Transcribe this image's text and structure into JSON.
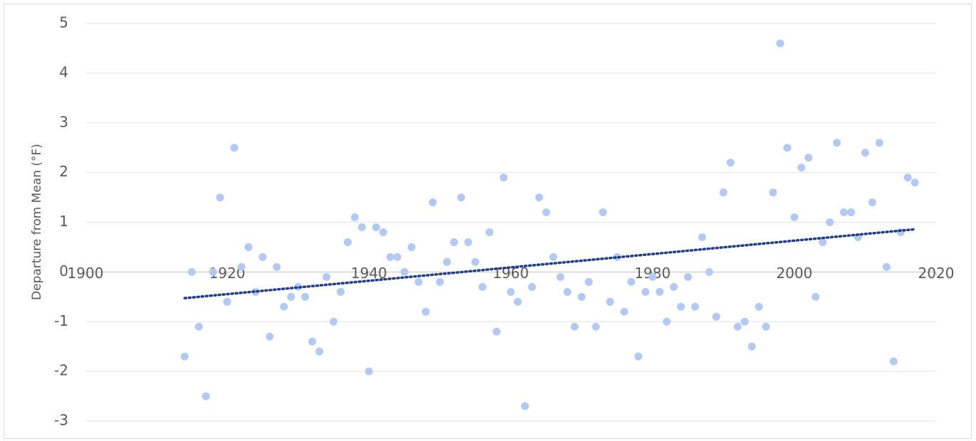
{
  "chart_data": {
    "type": "scatter",
    "y_label": "Departure from Mean (°F)",
    "x": [
      1914,
      1915,
      1916,
      1917,
      1918,
      1919,
      1920,
      1921,
      1922,
      1923,
      1924,
      1925,
      1926,
      1927,
      1928,
      1929,
      1930,
      1931,
      1932,
      1933,
      1934,
      1935,
      1936,
      1937,
      1938,
      1939,
      1940,
      1941,
      1942,
      1943,
      1944,
      1945,
      1946,
      1947,
      1948,
      1949,
      1950,
      1951,
      1952,
      1953,
      1954,
      1955,
      1956,
      1957,
      1958,
      1959,
      1960,
      1961,
      1962,
      1963,
      1964,
      1965,
      1966,
      1967,
      1968,
      1969,
      1970,
      1971,
      1972,
      1973,
      1974,
      1975,
      1976,
      1977,
      1978,
      1979,
      1980,
      1981,
      1982,
      1983,
      1984,
      1985,
      1986,
      1987,
      1988,
      1989,
      1990,
      1991,
      1992,
      1993,
      1994,
      1995,
      1996,
      1997,
      1998,
      1999,
      2000,
      2001,
      2002,
      2003,
      2004,
      2005,
      2006,
      2007,
      2008,
      2009,
      2010,
      2011,
      2012,
      2013,
      2014,
      2015,
      2016,
      2017
    ],
    "series": [
      {
        "color": "#b4c9f2",
        "trendline_color": "#1f3b8c",
        "values": [
          -1.7,
          0,
          -1.1,
          -2.5,
          0,
          1.5,
          -0.6,
          2.5,
          0.1,
          0.5,
          -0.4,
          0.3,
          -1.3,
          0.1,
          -0.7,
          -0.5,
          -0.3,
          -0.5,
          -1.4,
          -1.6,
          -0.1,
          -1.0,
          -0.4,
          0.6,
          1.1,
          0.9,
          -2.0,
          0.9,
          0.8,
          0.3,
          0.3,
          0,
          0.5,
          -0.2,
          -0.8,
          1.4,
          -0.2,
          0.2,
          0.6,
          1.5,
          0.6,
          0.2,
          -0.3,
          0.8,
          -1.2,
          1.9,
          -0.4,
          -0.6,
          -2.7,
          -0.3,
          1.5,
          1.2,
          0.3,
          -0.1,
          -0.4,
          -1.1,
          -0.5,
          -0.2,
          -1.1,
          1.2,
          -0.6,
          0.3,
          -0.8,
          -0.2,
          -1.7,
          -0.4,
          -0.1,
          -0.4,
          -1.0,
          -0.3,
          -0.7,
          -0.1,
          -0.7,
          0.7,
          0,
          -0.9,
          1.6,
          2.2,
          -1.1,
          -1.0,
          -1.5,
          -0.7,
          -1.1,
          1.6,
          4.6,
          2.5,
          1.1,
          2.1,
          2.3,
          -0.5,
          0.6,
          1.0,
          2.6,
          1.2,
          1.2,
          0.7,
          2.4,
          1.4,
          2.6,
          0.1,
          -1.8,
          0.8,
          1.9,
          1.8
        ]
      }
    ],
    "trendline": true,
    "xlim": [
      1900,
      2020
    ],
    "xticks": [
      1900,
      1920,
      1940,
      1960,
      1980,
      2000,
      2020
    ],
    "ylim": [
      -3,
      5
    ],
    "yticks": [
      -3,
      -2,
      -1,
      0,
      1,
      2,
      3,
      4,
      5
    ],
    "grid": true
  }
}
